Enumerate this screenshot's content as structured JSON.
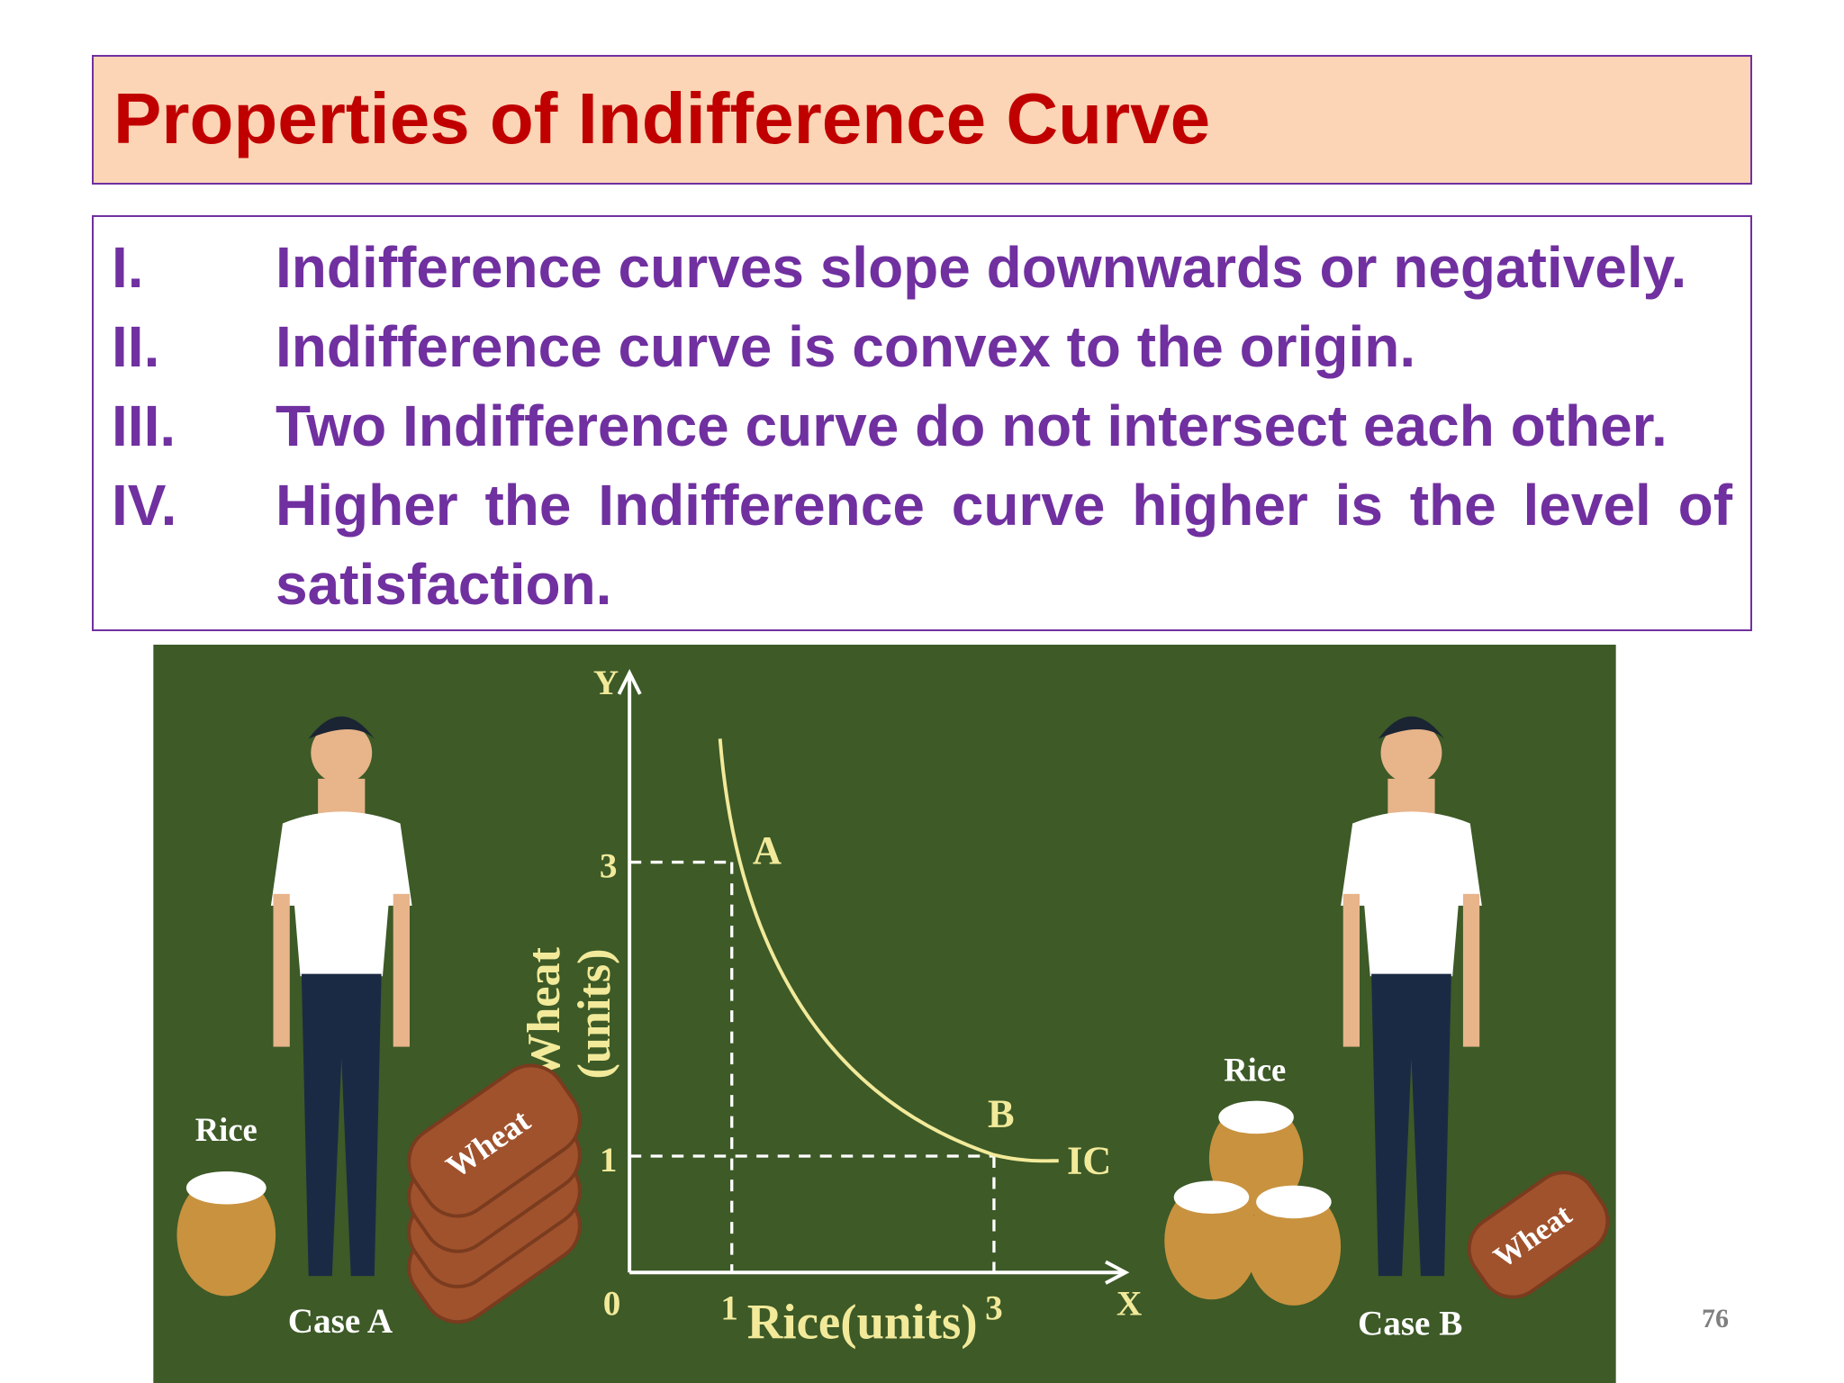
{
  "header": {
    "title": "Properties of Indifference Curve"
  },
  "list": {
    "items": [
      {
        "marker": "I.",
        "text": "Indifference curves slope downwards or negatively."
      },
      {
        "marker": "II.",
        "text": "Indifference curve is convex to the origin."
      },
      {
        "marker": "III.",
        "text": "Two Indifference curve do not intersect each other."
      },
      {
        "marker": "IV.",
        "text": "Higher the Indifference curve higher is the level of satisfaction."
      }
    ]
  },
  "figure": {
    "y_axis_letter": "Y",
    "x_axis_letter": "X",
    "origin": "0",
    "y_tick_labels": [
      "3",
      "1"
    ],
    "x_tick_labels": [
      "1",
      "3"
    ],
    "y_label_lines": [
      "Wheat",
      "(units)"
    ],
    "x_label": "Rice(units)",
    "points": [
      "A",
      "B"
    ],
    "curve_label": "IC",
    "case_a": {
      "label": "Case A",
      "rice": "Rice",
      "wheat": "Wheat"
    },
    "case_b": {
      "label": "Case B",
      "rice": "Rice",
      "wheat": "Wheat"
    }
  },
  "page_number": "76"
}
